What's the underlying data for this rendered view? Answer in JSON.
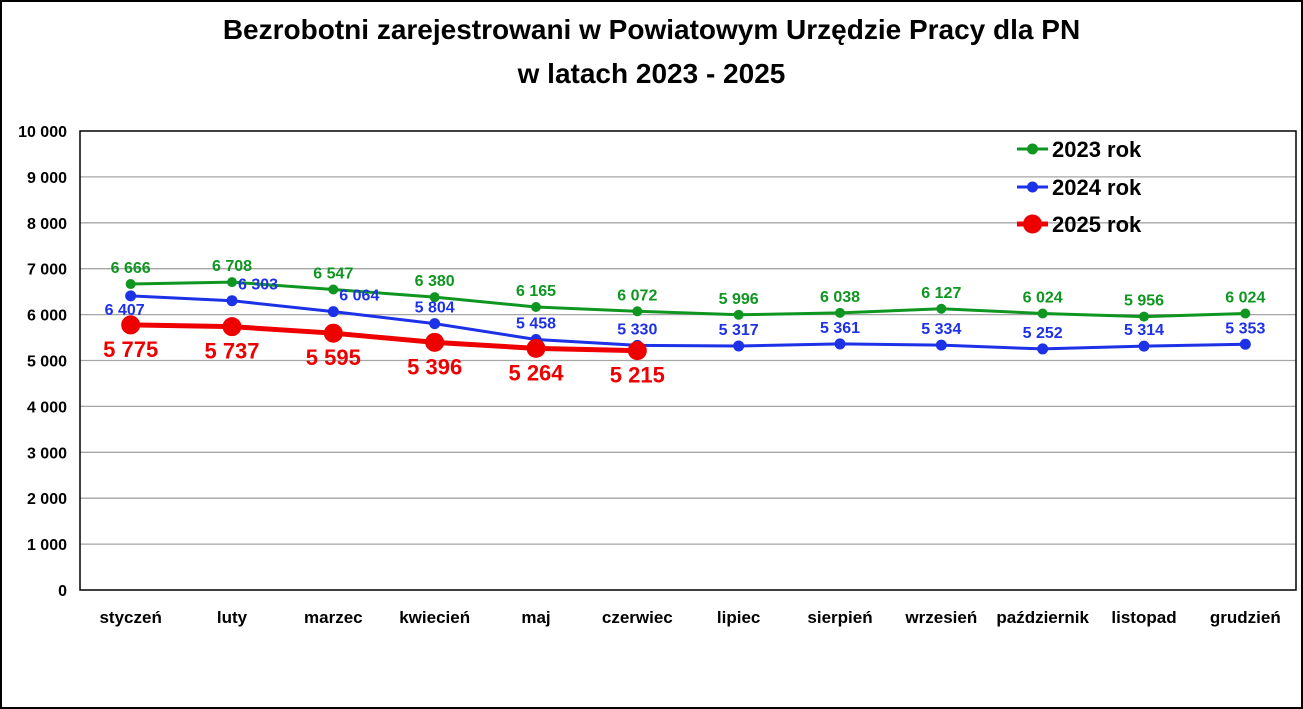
{
  "title": {
    "line1": "Bezrobotni zarejestrowani w Powiatowym Urzędzie Pracy dla PN",
    "line2": "w latach 2023 - 2025"
  },
  "chart_data": {
    "type": "line",
    "title": "Bezrobotni zarejestrowani w Powiatowym Urzędzie Pracy dla PN w latach 2023 - 2025",
    "categories": [
      "styczeń",
      "luty",
      "marzec",
      "kwiecień",
      "maj",
      "czerwiec",
      "lipiec",
      "sierpień",
      "wrzesień",
      "październik",
      "listopad",
      "grudzień"
    ],
    "series": [
      {
        "name": "2023 rok",
        "color": "#0F9621",
        "values": [
          6666,
          6708,
          6547,
          6380,
          6165,
          6072,
          5996,
          6038,
          6127,
          6024,
          5956,
          6024
        ],
        "labels": [
          "6 666",
          "6 708",
          "6 547",
          "6 380",
          "6 165",
          "6 072",
          "5 996",
          "6 038",
          "6 127",
          "6 024",
          "5 956",
          "6 024"
        ]
      },
      {
        "name": "2024 rok",
        "color": "#1D31E6",
        "values": [
          6407,
          6303,
          6064,
          5804,
          5458,
          5330,
          5317,
          5361,
          5334,
          5252,
          5314,
          5353
        ],
        "labels": [
          "6 407",
          "6 303",
          "6 064",
          "5 804",
          "5 458",
          "5 330",
          "5 317",
          "5 361",
          "5 334",
          "5 252",
          "5 314",
          "5 353"
        ]
      },
      {
        "name": "2025 rok",
        "color": "#EF0000",
        "values": [
          5775,
          5737,
          5595,
          5396,
          5264,
          5215,
          null,
          null,
          null,
          null,
          null,
          null
        ],
        "labels": [
          "5 775",
          "5 737",
          "5 595",
          "5 396",
          "5 264",
          "5 215"
        ]
      }
    ],
    "xlabel": "",
    "ylabel": "",
    "ylim": [
      0,
      10000
    ],
    "ytick_step": 1000,
    "ytick_labels": [
      "0",
      "1 000",
      "2 000",
      "3 000",
      "4 000",
      "5 000",
      "6 000",
      "7 000",
      "8 000",
      "9 000",
      "10 000"
    ],
    "grid": true,
    "grid_color": "#A6A6A6",
    "legend_position": "top-right"
  }
}
